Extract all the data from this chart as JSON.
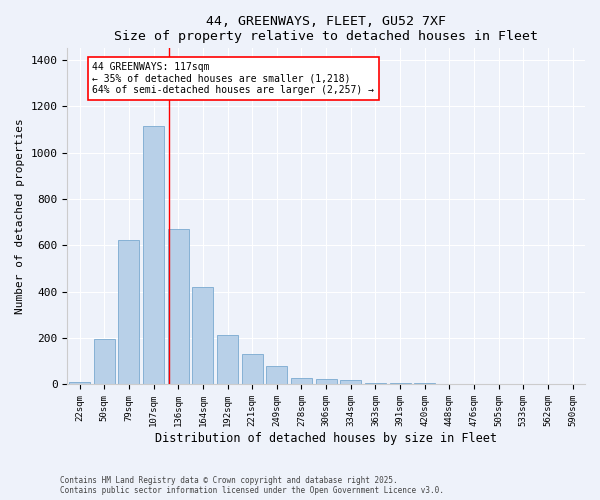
{
  "title1": "44, GREENWAYS, FLEET, GU52 7XF",
  "title2": "Size of property relative to detached houses in Fleet",
  "xlabel": "Distribution of detached houses by size in Fleet",
  "ylabel": "Number of detached properties",
  "bar_color": "#b8d0e8",
  "bar_edge_color": "#7aaad0",
  "categories": [
    "22sqm",
    "50sqm",
    "79sqm",
    "107sqm",
    "136sqm",
    "164sqm",
    "192sqm",
    "221sqm",
    "249sqm",
    "278sqm",
    "306sqm",
    "334sqm",
    "363sqm",
    "391sqm",
    "420sqm",
    "448sqm",
    "476sqm",
    "505sqm",
    "533sqm",
    "562sqm",
    "590sqm"
  ],
  "values": [
    10,
    195,
    625,
    1115,
    670,
    420,
    215,
    130,
    80,
    30,
    25,
    20,
    8,
    5,
    5,
    4,
    2,
    1,
    0,
    0,
    0
  ],
  "red_line_x": 3.62,
  "annotation_line1": "44 GREENWAYS: 117sqm",
  "annotation_line2": "← 35% of detached houses are smaller (1,218)",
  "annotation_line3": "64% of semi-detached houses are larger (2,257) →",
  "ylim": [
    0,
    1450
  ],
  "yticks": [
    0,
    200,
    400,
    600,
    800,
    1000,
    1200,
    1400
  ],
  "footer1": "Contains HM Land Registry data © Crown copyright and database right 2025.",
  "footer2": "Contains public sector information licensed under the Open Government Licence v3.0.",
  "bg_color": "#eef2fa",
  "grid_color": "#ffffff"
}
